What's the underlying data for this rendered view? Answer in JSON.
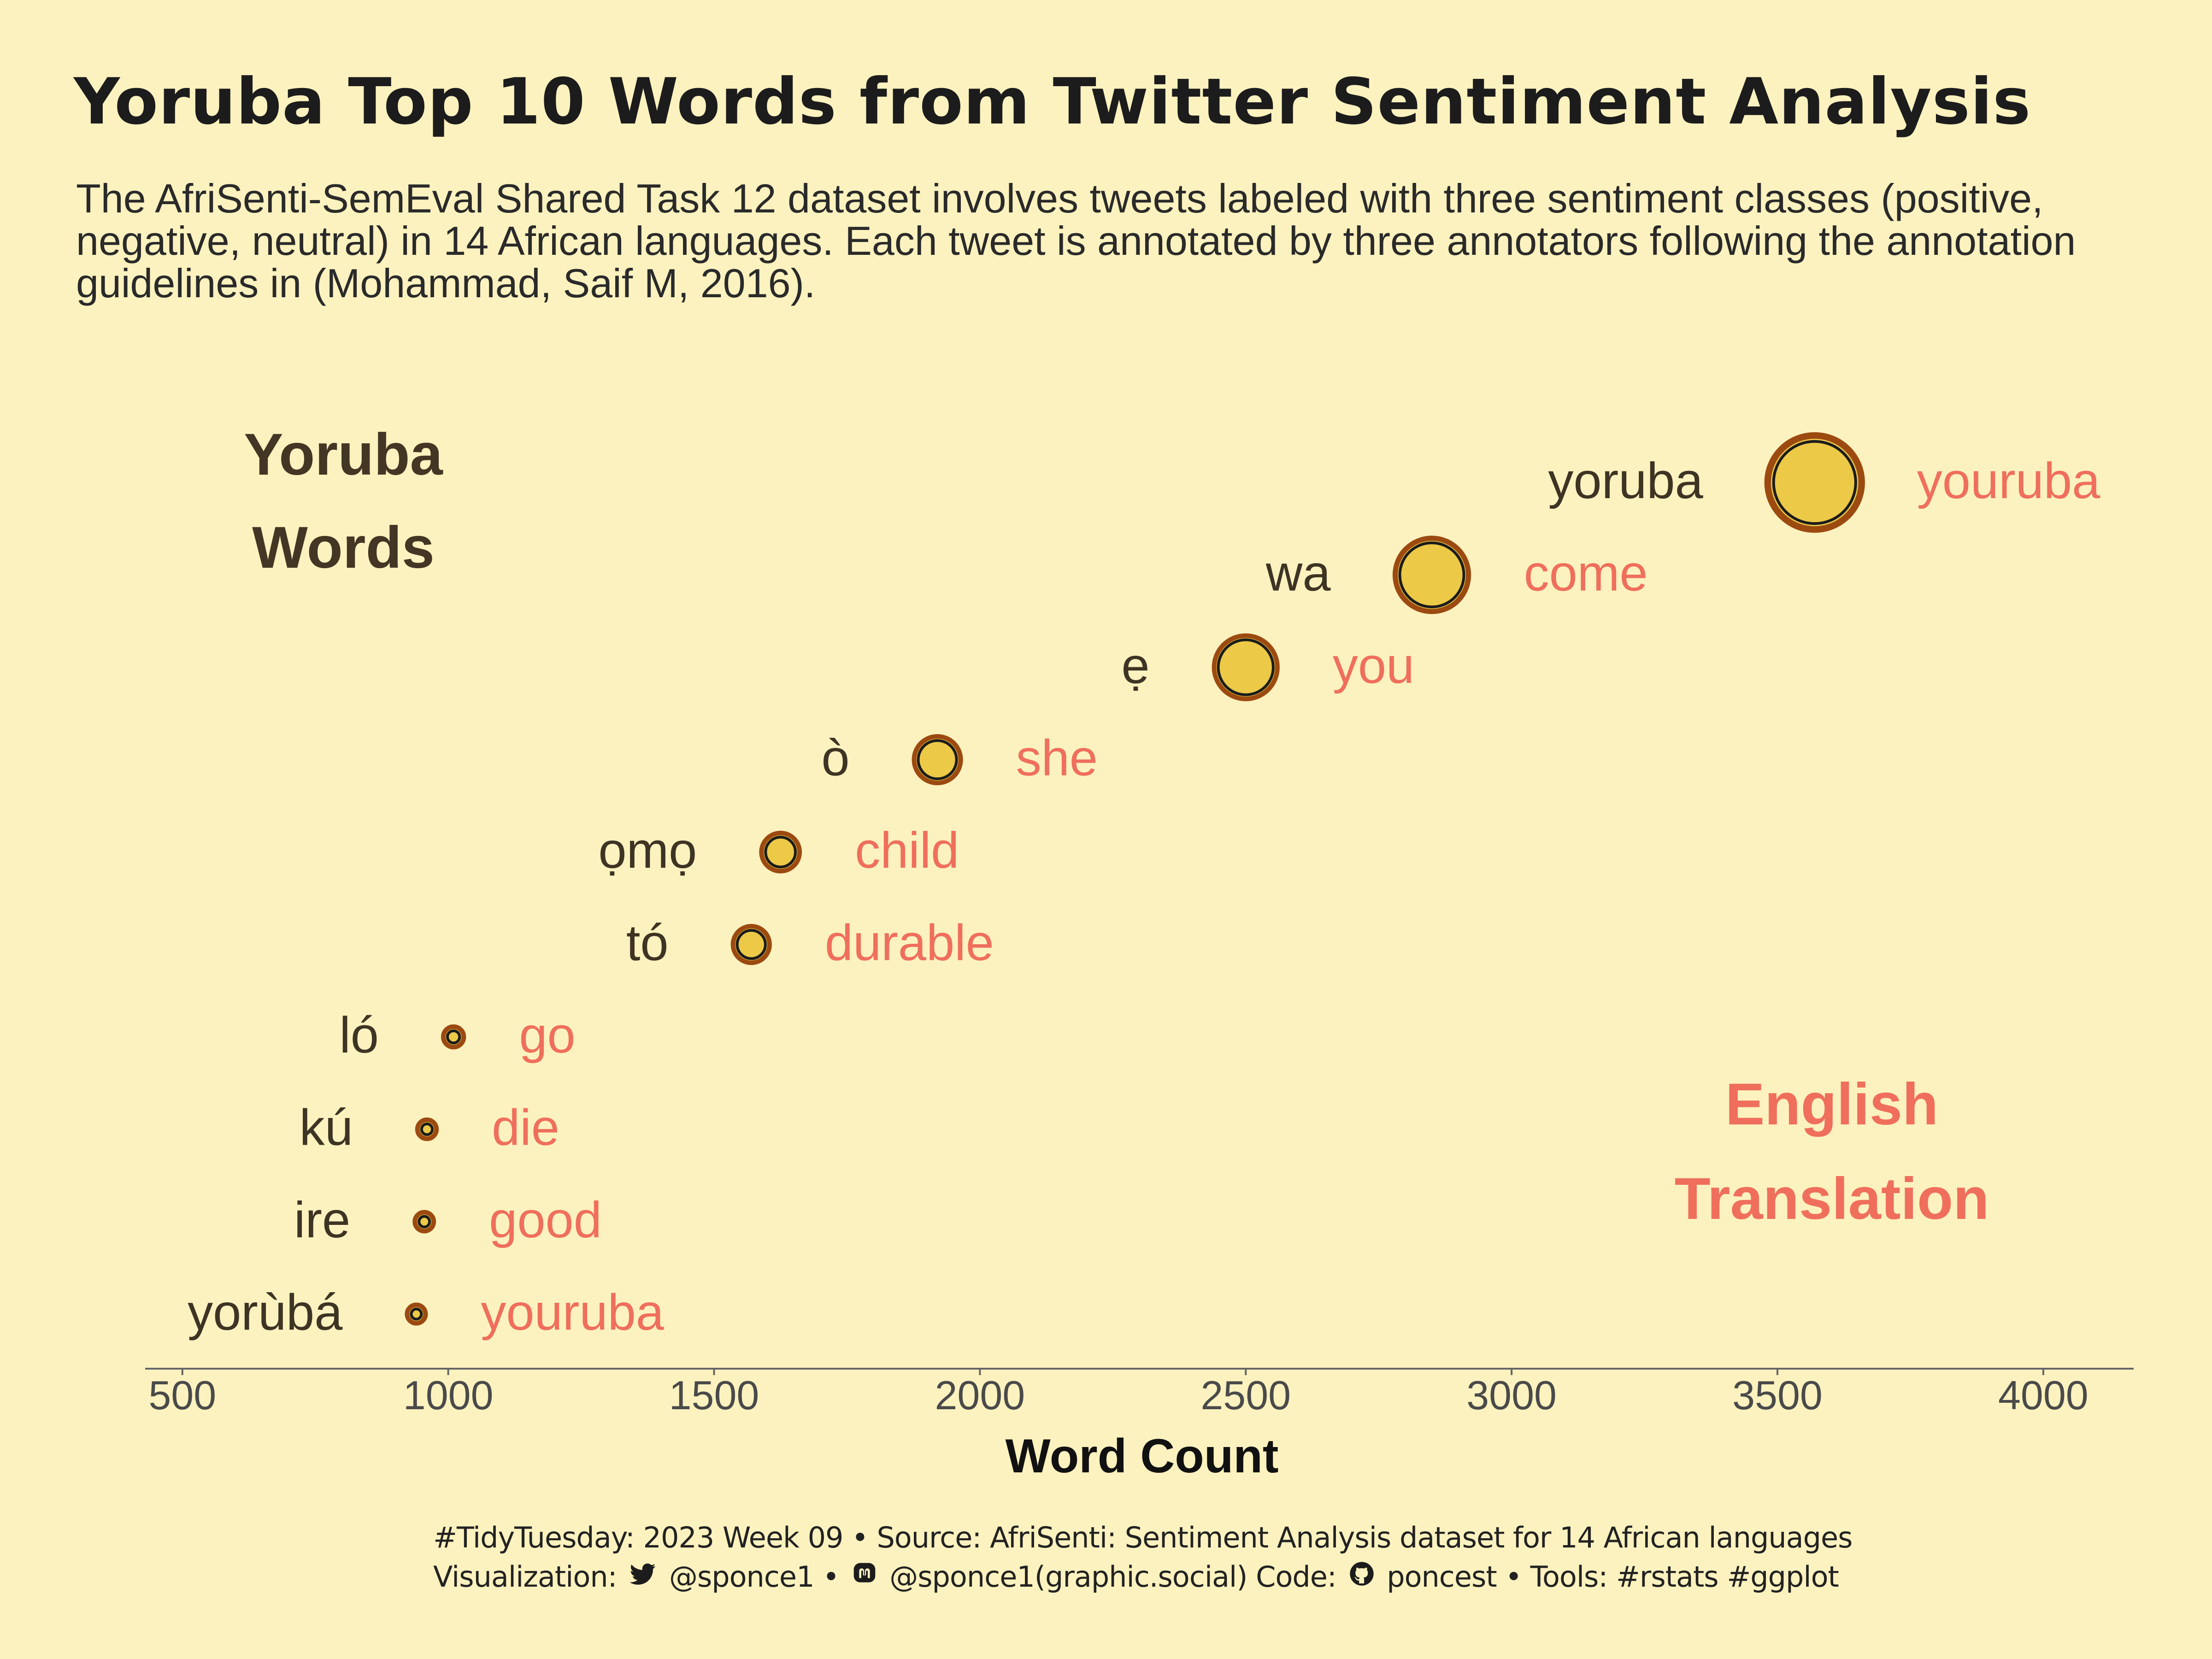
{
  "title": "Yoruba Top 10 Words from Twitter Sentiment Analysis",
  "subtitle": "The AfriSenti-SemEval Shared Task 12 dataset involves tweets labeled with three sentiment classes (positive, negative, neutral) in 14 African languages. Each tweet is annotated by three annotators following the annotation guidelines in (Mohammad, Saif M, 2016).",
  "caption": {
    "line1": "#TidyTuesday: 2023 Week 09 • Source: AfriSenti: Sentiment Analysis dataset for 14 African languages",
    "viz_label": "Visualization:",
    "twitter_handle": "@sponce1 •",
    "mastodon_handle": "@sponce1(graphic.social) Code:",
    "github_handle": "poncest • Tools: #rstats #ggplot"
  },
  "colors": {
    "background": "#FCF2BF",
    "point_fill": "#ECC947",
    "point_ring": "#9C4A10",
    "yoruba_text": "#3E3424",
    "english_text": "#EF6F5C",
    "axis": "#666666"
  },
  "chart_data": {
    "type": "scatter",
    "xlabel": "Word Count",
    "xlim": [
      430,
      4170
    ],
    "xticks": [
      500,
      1000,
      1500,
      2000,
      2500,
      3000,
      3500,
      4000
    ],
    "legend_left": [
      "Yoruba",
      "Words"
    ],
    "legend_right": [
      "English",
      "Translation"
    ],
    "points": [
      {
        "yoruba": "yoruba",
        "english": "youruba",
        "count": 3570
      },
      {
        "yoruba": "wa",
        "english": "come",
        "count": 2850
      },
      {
        "yoruba": "ẹ",
        "english": "you",
        "count": 2500
      },
      {
        "yoruba": "ò",
        "english": "she",
        "count": 1920
      },
      {
        "yoruba": "ọmọ",
        "english": "child",
        "count": 1625
      },
      {
        "yoruba": "tó",
        "english": "durable",
        "count": 1570
      },
      {
        "yoruba": "ló",
        "english": "go",
        "count": 1010
      },
      {
        "yoruba": "kú",
        "english": "die",
        "count": 960
      },
      {
        "yoruba": "ire",
        "english": "good",
        "count": 955
      },
      {
        "yoruba": "yorùbá",
        "english": "youruba",
        "count": 940
      }
    ]
  }
}
